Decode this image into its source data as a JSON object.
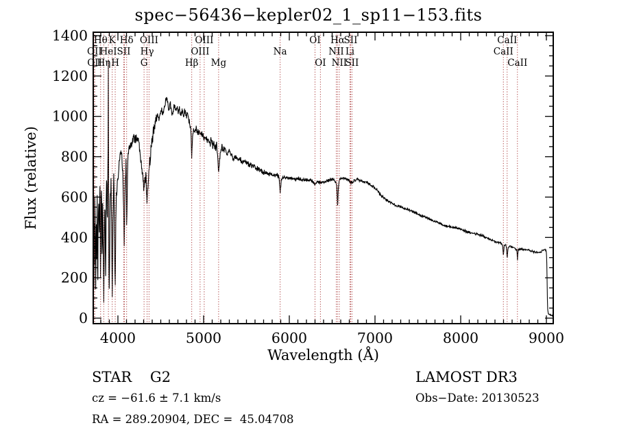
{
  "annotations": {
    "class_line": "STAR    G2",
    "cz_line": "cz = −61.6 ± 7.1 km/s",
    "radec_line": "RA = 289.20904, DEC =  45.04708",
    "survey_line": "LAMOST DR3",
    "obsdate_line": "Obs−Date: 20130523"
  },
  "chart_data": {
    "type": "line",
    "title": "spec−56436−kepler02_1_sp11−153.fits",
    "xlabel": "Wavelength (Å)",
    "ylabel": "Flux (relative)",
    "xlim": [
      3712,
      9080
    ],
    "ylim": [
      -27,
      1417
    ],
    "x_ticks": [
      4000,
      5000,
      6000,
      7000,
      8000,
      9000
    ],
    "x_minor_step": 100,
    "y_ticks": [
      0,
      200,
      400,
      600,
      800,
      1000,
      1200,
      1400
    ],
    "y_minor_step": 50,
    "grid": false,
    "line_color": "#000000",
    "marker_line_color": "#aa3939",
    "spectral_lines": [
      {
        "label": "OII",
        "wl": 3727,
        "row": 2
      },
      {
        "label": "OII",
        "wl": 3729,
        "row": 3
      },
      {
        "label": "Hθ",
        "wl": 3798,
        "row": 1
      },
      {
        "label": "Hη",
        "wl": 3835,
        "row": 3
      },
      {
        "label": "HeI",
        "wl": 3889,
        "row": 2
      },
      {
        "label": "K",
        "wl": 3933.7,
        "row": 1
      },
      {
        "label": "H",
        "wl": 3968.5,
        "row": 3
      },
      {
        "label": "SII",
        "wl": 4068,
        "row": 2,
        "extra": [
          4076
        ]
      },
      {
        "label": "Hδ",
        "wl": 4101.7,
        "row": 1
      },
      {
        "label": "G",
        "wl": 4305,
        "row": 3
      },
      {
        "label": "Hγ",
        "wl": 4340.5,
        "row": 2
      },
      {
        "label": "OIII",
        "wl": 4363,
        "row": 1
      },
      {
        "label": "Hβ",
        "wl": 4861.3,
        "row": 3
      },
      {
        "label": "OIII",
        "wl": 4959,
        "row": 2
      },
      {
        "label": "OIII",
        "wl": 5007,
        "row": 1
      },
      {
        "label": "Mg",
        "wl": 5175,
        "row": 3
      },
      {
        "label": "Na",
        "wl": 5893,
        "row": 2
      },
      {
        "label": "OI",
        "wl": 6300,
        "row": 1
      },
      {
        "label": "OI",
        "wl": 6363,
        "row": 3
      },
      {
        "label": "NII",
        "wl": 6548,
        "row": 2
      },
      {
        "label": "Hα",
        "wl": 6562.8,
        "row": 1
      },
      {
        "label": "NII",
        "wl": 6583,
        "row": 3
      },
      {
        "label": "Li",
        "wl": 6708,
        "row": 2
      },
      {
        "label": "SII",
        "wl": 6716,
        "row": 1
      },
      {
        "label": "SII",
        "wl": 6731,
        "row": 3
      },
      {
        "label": "CaII",
        "wl": 8498,
        "row": 2
      },
      {
        "label": "CaII",
        "wl": 8542,
        "row": 1
      },
      {
        "label": "CaII",
        "wl": 8662,
        "row": 3
      }
    ],
    "spectrum": {
      "anchors": [
        [
          3712,
          350
        ],
        [
          3716,
          620
        ],
        [
          3720,
          180
        ],
        [
          3724,
          520
        ],
        [
          3727,
          240
        ],
        [
          3731,
          640
        ],
        [
          3736,
          420
        ],
        [
          3741,
          120
        ],
        [
          3746,
          560
        ],
        [
          3752,
          300
        ],
        [
          3758,
          660
        ],
        [
          3764,
          90
        ],
        [
          3770,
          480
        ],
        [
          3776,
          640
        ],
        [
          3782,
          380
        ],
        [
          3788,
          700
        ],
        [
          3794,
          420
        ],
        [
          3798,
          170
        ],
        [
          3803,
          540
        ],
        [
          3809,
          660
        ],
        [
          3815,
          280
        ],
        [
          3821,
          600
        ],
        [
          3828,
          350
        ],
        [
          3835,
          60
        ],
        [
          3842,
          420
        ],
        [
          3849,
          560
        ],
        [
          3856,
          180
        ],
        [
          3863,
          520
        ],
        [
          3870,
          680
        ],
        [
          3877,
          480
        ],
        [
          3883,
          700
        ],
        [
          3887,
          1150
        ],
        [
          3889,
          1415
        ],
        [
          3892,
          600
        ],
        [
          3895,
          210
        ],
        [
          3900,
          160
        ],
        [
          3906,
          480
        ],
        [
          3913,
          620
        ],
        [
          3920,
          680
        ],
        [
          3927,
          420
        ],
        [
          3933,
          70
        ],
        [
          3939,
          380
        ],
        [
          3945,
          600
        ],
        [
          3951,
          700
        ],
        [
          3957,
          520
        ],
        [
          3962,
          350
        ],
        [
          3968,
          130
        ],
        [
          3974,
          420
        ],
        [
          3981,
          600
        ],
        [
          3988,
          660
        ],
        [
          3995,
          700
        ],
        [
          4005,
          720
        ],
        [
          4015,
          760
        ],
        [
          4025,
          800
        ],
        [
          4035,
          830
        ],
        [
          4045,
          790
        ],
        [
          4055,
          750
        ],
        [
          4062,
          600
        ],
        [
          4068,
          500
        ],
        [
          4074,
          330
        ],
        [
          4080,
          560
        ],
        [
          4088,
          720
        ],
        [
          4095,
          780
        ],
        [
          4102,
          430
        ],
        [
          4110,
          700
        ],
        [
          4118,
          790
        ],
        [
          4126,
          840
        ],
        [
          4134,
          870
        ],
        [
          4142,
          840
        ],
        [
          4150,
          880
        ],
        [
          4160,
          850
        ],
        [
          4170,
          900
        ],
        [
          4180,
          870
        ],
        [
          4190,
          920
        ],
        [
          4200,
          880
        ],
        [
          4212,
          900
        ],
        [
          4224,
          860
        ],
        [
          4236,
          890
        ],
        [
          4248,
          840
        ],
        [
          4260,
          800
        ],
        [
          4272,
          760
        ],
        [
          4284,
          720
        ],
        [
          4296,
          670
        ],
        [
          4305,
          630
        ],
        [
          4315,
          690
        ],
        [
          4325,
          720
        ],
        [
          4333,
          650
        ],
        [
          4340,
          555
        ],
        [
          4348,
          640
        ],
        [
          4356,
          700
        ],
        [
          4363,
          730
        ],
        [
          4372,
          780
        ],
        [
          4382,
          820
        ],
        [
          4392,
          860
        ],
        [
          4405,
          900
        ],
        [
          4420,
          940
        ],
        [
          4435,
          970
        ],
        [
          4450,
          990
        ],
        [
          4465,
          1010
        ],
        [
          4480,
          985
        ],
        [
          4495,
          1015
        ],
        [
          4510,
          1040
        ],
        [
          4525,
          1005
        ],
        [
          4540,
          1045
        ],
        [
          4555,
          1070
        ],
        [
          4570,
          1095
        ],
        [
          4585,
          1050
        ],
        [
          4600,
          1025
        ],
        [
          4615,
          1060
        ],
        [
          4630,
          1000
        ],
        [
          4645,
          1035
        ],
        [
          4660,
          1050
        ],
        [
          4675,
          1025
        ],
        [
          4690,
          1045
        ],
        [
          4705,
          1015
        ],
        [
          4720,
          1040
        ],
        [
          4735,
          1010
        ],
        [
          4750,
          1030
        ],
        [
          4765,
          1000
        ],
        [
          4780,
          1020
        ],
        [
          4795,
          995
        ],
        [
          4810,
          1015
        ],
        [
          4825,
          985
        ],
        [
          4840,
          960
        ],
        [
          4852,
          920
        ],
        [
          4861,
          790
        ],
        [
          4870,
          900
        ],
        [
          4880,
          945
        ],
        [
          4895,
          925
        ],
        [
          4910,
          940
        ],
        [
          4925,
          915
        ],
        [
          4940,
          930
        ],
        [
          4955,
          905
        ],
        [
          4970,
          920
        ],
        [
          4985,
          900
        ],
        [
          5000,
          910
        ],
        [
          5015,
          885
        ],
        [
          5030,
          900
        ],
        [
          5045,
          875
        ],
        [
          5060,
          890
        ],
        [
          5075,
          865
        ],
        [
          5090,
          880
        ],
        [
          5105,
          855
        ],
        [
          5120,
          865
        ],
        [
          5135,
          845
        ],
        [
          5150,
          855
        ],
        [
          5162,
          820
        ],
        [
          5175,
          710
        ],
        [
          5188,
          800
        ],
        [
          5200,
          830
        ],
        [
          5215,
          845
        ],
        [
          5230,
          825
        ],
        [
          5250,
          840
        ],
        [
          5275,
          815
        ],
        [
          5300,
          830
        ],
        [
          5325,
          805
        ],
        [
          5350,
          790
        ],
        [
          5375,
          800
        ],
        [
          5400,
          780
        ],
        [
          5425,
          790
        ],
        [
          5450,
          770
        ],
        [
          5475,
          780
        ],
        [
          5500,
          775
        ],
        [
          5530,
          760
        ],
        [
          5560,
          755
        ],
        [
          5590,
          748
        ],
        [
          5620,
          742
        ],
        [
          5650,
          735
        ],
        [
          5680,
          728
        ],
        [
          5710,
          722
        ],
        [
          5740,
          720
        ],
        [
          5770,
          715
        ],
        [
          5800,
          712
        ],
        [
          5830,
          710
        ],
        [
          5860,
          706
        ],
        [
          5880,
          700
        ],
        [
          5892,
          618
        ],
        [
          5905,
          680
        ],
        [
          5920,
          695
        ],
        [
          5950,
          700
        ],
        [
          5990,
          696
        ],
        [
          6030,
          692
        ],
        [
          6070,
          688
        ],
        [
          6110,
          690
        ],
        [
          6150,
          686
        ],
        [
          6190,
          684
        ],
        [
          6230,
          686
        ],
        [
          6270,
          680
        ],
        [
          6300,
          662
        ],
        [
          6330,
          678
        ],
        [
          6363,
          668
        ],
        [
          6400,
          676
        ],
        [
          6440,
          680
        ],
        [
          6480,
          686
        ],
        [
          6520,
          688
        ],
        [
          6548,
          672
        ],
        [
          6556,
          640
        ],
        [
          6563,
          545
        ],
        [
          6572,
          650
        ],
        [
          6584,
          680
        ],
        [
          6600,
          692
        ],
        [
          6630,
          694
        ],
        [
          6660,
          690
        ],
        [
          6690,
          686
        ],
        [
          6708,
          678
        ],
        [
          6716,
          672
        ],
        [
          6731,
          668
        ],
        [
          6760,
          684
        ],
        [
          6800,
          688
        ],
        [
          6840,
          682
        ],
        [
          6880,
          676
        ],
        [
          6920,
          668
        ],
        [
          6960,
          658
        ],
        [
          7000,
          645
        ],
        [
          7040,
          625
        ],
        [
          7080,
          605
        ],
        [
          7120,
          590
        ],
        [
          7160,
          578
        ],
        [
          7200,
          568
        ],
        [
          7240,
          560
        ],
        [
          7280,
          556
        ],
        [
          7320,
          548
        ],
        [
          7360,
          540
        ],
        [
          7400,
          534
        ],
        [
          7440,
          528
        ],
        [
          7480,
          520
        ],
        [
          7520,
          512
        ],
        [
          7560,
          505
        ],
        [
          7600,
          498
        ],
        [
          7640,
          491
        ],
        [
          7680,
          484
        ],
        [
          7720,
          477
        ],
        [
          7760,
          468
        ],
        [
          7800,
          461
        ],
        [
          7840,
          456
        ],
        [
          7880,
          452
        ],
        [
          7920,
          449
        ],
        [
          7960,
          446
        ],
        [
          8000,
          441
        ],
        [
          8040,
          434
        ],
        [
          8080,
          428
        ],
        [
          8120,
          423
        ],
        [
          8160,
          419
        ],
        [
          8200,
          416
        ],
        [
          8240,
          410
        ],
        [
          8280,
          403
        ],
        [
          8320,
          394
        ],
        [
          8360,
          386
        ],
        [
          8400,
          380
        ],
        [
          8440,
          376
        ],
        [
          8470,
          372
        ],
        [
          8490,
          360
        ],
        [
          8498,
          308
        ],
        [
          8508,
          358
        ],
        [
          8525,
          362
        ],
        [
          8535,
          345
        ],
        [
          8542,
          293
        ],
        [
          8552,
          350
        ],
        [
          8570,
          356
        ],
        [
          8600,
          352
        ],
        [
          8630,
          348
        ],
        [
          8655,
          340
        ],
        [
          8662,
          288
        ],
        [
          8672,
          338
        ],
        [
          8700,
          342
        ],
        [
          8740,
          340
        ],
        [
          8780,
          338
        ],
        [
          8820,
          333
        ],
        [
          8860,
          328
        ],
        [
          8900,
          324
        ],
        [
          8930,
          328
        ],
        [
          8960,
          338
        ],
        [
          8985,
          340
        ],
        [
          9000,
          330
        ],
        [
          9006,
          260
        ],
        [
          9010,
          120
        ],
        [
          9015,
          45
        ],
        [
          9022,
          22
        ],
        [
          9040,
          18
        ],
        [
          9060,
          14
        ],
        [
          9080,
          12
        ]
      ],
      "noise_regions": [
        [
          3712,
          4000,
          80
        ],
        [
          4000,
          4450,
          40
        ],
        [
          4450,
          5250,
          26
        ],
        [
          5250,
          5900,
          15
        ],
        [
          5900,
          7100,
          10
        ],
        [
          7100,
          8100,
          8
        ],
        [
          8100,
          9000,
          7
        ],
        [
          9000,
          9081,
          3
        ]
      ]
    }
  }
}
